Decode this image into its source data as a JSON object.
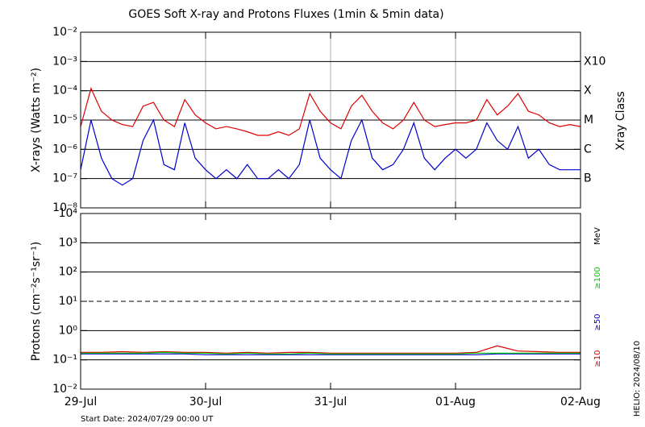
{
  "chart_data": [
    {
      "type": "line",
      "title": "GOES Soft X-ray and Protons Fluxes   (1min & 5min data)",
      "ylabel": "X-rays (Watts m⁻²)",
      "log_y": true,
      "grid": true,
      "vgrid": true,
      "xlim": [
        0,
        96
      ],
      "xticks": [
        0,
        24,
        48,
        72,
        96
      ],
      "ylim": [
        1e-08,
        0.01
      ],
      "yticks": [
        {
          "value": 1e-08,
          "label": "10⁻⁸"
        },
        {
          "value": 1e-07,
          "label": "10⁻⁷"
        },
        {
          "value": 1e-06,
          "label": "10⁻⁶"
        },
        {
          "value": 1e-05,
          "label": "10⁻⁵"
        },
        {
          "value": 0.0001,
          "label": "10⁻⁴"
        },
        {
          "value": 0.001,
          "label": "10⁻³"
        },
        {
          "value": 0.01,
          "label": "10⁻²"
        }
      ],
      "class_labels": [
        {
          "value": 0.001,
          "label": "X10"
        },
        {
          "value": 0.0001,
          "label": "X"
        },
        {
          "value": 1e-05,
          "label": "M"
        },
        {
          "value": 1e-06,
          "label": "C"
        },
        {
          "value": 1e-07,
          "label": "B"
        }
      ],
      "class_axis_label": "Xray Class",
      "x": [
        0,
        2,
        4,
        6,
        8,
        10,
        12,
        14,
        16,
        18,
        20,
        22,
        24,
        26,
        28,
        30,
        32,
        34,
        36,
        38,
        40,
        42,
        44,
        46,
        48,
        50,
        52,
        54,
        56,
        58,
        60,
        62,
        64,
        66,
        68,
        70,
        72,
        74,
        76,
        78,
        80,
        82,
        84,
        86,
        88,
        90,
        92,
        94,
        96
      ],
      "series": [
        {
          "color": "#dd0000",
          "values": [
            6e-06,
            0.00012,
            2e-05,
            1e-05,
            7e-06,
            6e-06,
            3e-05,
            4e-05,
            1e-05,
            6e-06,
            5e-05,
            1.5e-05,
            8e-06,
            5e-06,
            6e-06,
            5e-06,
            4e-06,
            3e-06,
            3e-06,
            4e-06,
            3e-06,
            5e-06,
            8e-05,
            2e-05,
            8e-06,
            5e-06,
            3e-05,
            7e-05,
            2e-05,
            8e-06,
            5e-06,
            1e-05,
            4e-05,
            1e-05,
            6e-06,
            7e-06,
            8e-06,
            8e-06,
            1e-05,
            5e-05,
            1.5e-05,
            3e-05,
            8e-05,
            2e-05,
            1.5e-05,
            8e-06,
            6e-06,
            7e-06,
            6e-06
          ]
        },
        {
          "color": "#0000cc",
          "values": [
            2e-07,
            1e-05,
            5e-07,
            1e-07,
            6e-08,
            1e-07,
            2e-06,
            1e-05,
            3e-07,
            2e-07,
            8e-06,
            5e-07,
            2e-07,
            1e-07,
            2e-07,
            1e-07,
            3e-07,
            1e-07,
            1e-07,
            2e-07,
            1e-07,
            3e-07,
            1e-05,
            5e-07,
            2e-07,
            1e-07,
            2e-06,
            1e-05,
            5e-07,
            2e-07,
            3e-07,
            1e-06,
            8e-06,
            5e-07,
            2e-07,
            5e-07,
            1e-06,
            5e-07,
            1e-06,
            8e-06,
            2e-06,
            1e-06,
            6e-06,
            5e-07,
            1e-06,
            3e-07,
            2e-07,
            2e-07,
            2e-07
          ]
        }
      ]
    },
    {
      "type": "line",
      "ylabel": "Protons (cm⁻²s⁻¹sr⁻¹)",
      "log_y": true,
      "grid": true,
      "vgrid": false,
      "grid_dashed": [
        10
      ],
      "xlim": [
        0,
        96
      ],
      "xticks": [
        {
          "value": 0,
          "label": "29-Jul"
        },
        {
          "value": 24,
          "label": "30-Jul"
        },
        {
          "value": 48,
          "label": "31-Jul"
        },
        {
          "value": 72,
          "label": "01-Aug"
        },
        {
          "value": 96,
          "label": "02-Aug"
        }
      ],
      "ylim": [
        0.01,
        10000
      ],
      "yticks": [
        {
          "value": 0.01,
          "label": "10⁻²"
        },
        {
          "value": 0.1,
          "label": "10⁻¹"
        },
        {
          "value": 1,
          "label": "10⁰"
        },
        {
          "value": 10,
          "label": "10¹"
        },
        {
          "value": 100,
          "label": "10²"
        },
        {
          "value": 1000,
          "label": "10³"
        },
        {
          "value": 10000,
          "label": "10⁴"
        }
      ],
      "legend_title": "MeV",
      "x": [
        0,
        4,
        8,
        12,
        16,
        20,
        24,
        28,
        32,
        36,
        40,
        44,
        48,
        52,
        56,
        60,
        64,
        68,
        72,
        76,
        80,
        84,
        88,
        92,
        96
      ],
      "series": [
        {
          "name": "≥10",
          "color": "#dd0000",
          "values": [
            0.18,
            0.18,
            0.19,
            0.18,
            0.19,
            0.18,
            0.18,
            0.17,
            0.18,
            0.17,
            0.18,
            0.18,
            0.17,
            0.17,
            0.17,
            0.17,
            0.17,
            0.17,
            0.17,
            0.18,
            0.3,
            0.2,
            0.19,
            0.18,
            0.18
          ]
        },
        {
          "name": "≥50",
          "color": "#0000cc",
          "values": [
            0.16,
            0.16,
            0.16,
            0.16,
            0.16,
            0.16,
            0.15,
            0.15,
            0.15,
            0.15,
            0.15,
            0.15,
            0.15,
            0.15,
            0.15,
            0.15,
            0.15,
            0.15,
            0.15,
            0.15,
            0.16,
            0.16,
            0.16,
            0.16,
            0.16
          ]
        },
        {
          "name": "≥100",
          "color": "#00cc00",
          "values": [
            0.17,
            0.17,
            0.17,
            0.17,
            0.18,
            0.17,
            0.17,
            0.16,
            0.17,
            0.16,
            0.16,
            0.17,
            0.16,
            0.16,
            0.16,
            0.16,
            0.16,
            0.16,
            0.16,
            0.17,
            0.17,
            0.17,
            0.17,
            0.17,
            0.17
          ]
        }
      ]
    }
  ],
  "footer": {
    "start_date": "Start Date: 2024/07/29 00:00 UT",
    "credit": "HELIO: 2024/08/10"
  }
}
